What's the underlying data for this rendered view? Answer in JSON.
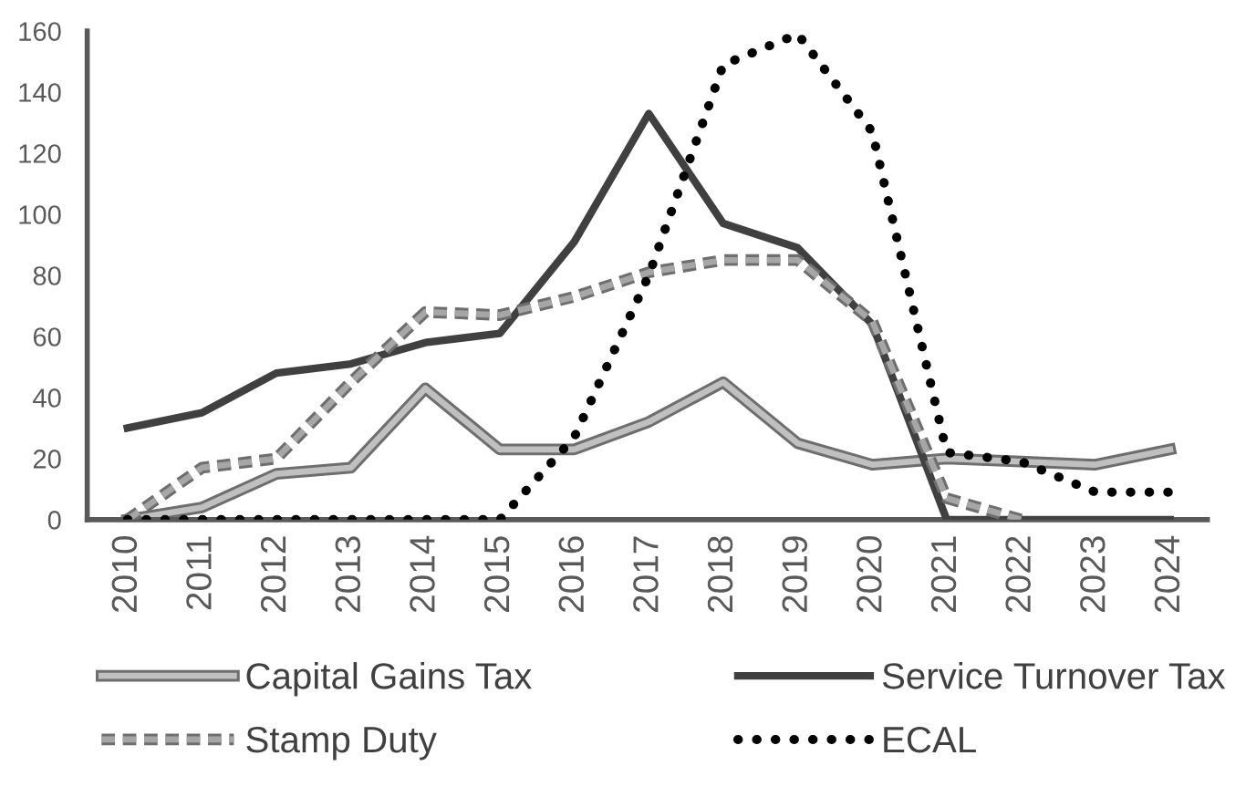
{
  "chart_data": {
    "type": "line",
    "categories": [
      "2010",
      "2011",
      "2012",
      "2013",
      "2014",
      "2015",
      "2016",
      "2017",
      "2018",
      "2019",
      "2020",
      "2021",
      "2022",
      "2023",
      "2024"
    ],
    "ylim": [
      0,
      160
    ],
    "yticks": [
      0,
      20,
      40,
      60,
      80,
      100,
      120,
      140,
      160
    ],
    "grid": false,
    "legend": "bottom",
    "marker": "none",
    "series": [
      {
        "name": "Capital Gains Tax",
        "color": "#c0c0c0",
        "line_style": "solid",
        "values": [
          0,
          4,
          15,
          17,
          43,
          23,
          23,
          32,
          45,
          25,
          18,
          20,
          19,
          18,
          23
        ]
      },
      {
        "name": "Service Turnover Tax",
        "color": "#404040",
        "line_style": "solid",
        "values": [
          30,
          35,
          48,
          51,
          58,
          61,
          91,
          133,
          97,
          89,
          64,
          0,
          0,
          0,
          0
        ]
      },
      {
        "name": "Stamp Duty",
        "color": "#a6a6a6",
        "line_style": "dashed",
        "values": [
          0,
          17,
          20,
          45,
          68,
          67,
          73,
          81,
          85,
          85,
          65,
          7,
          0,
          null,
          null
        ]
      },
      {
        "name": "ECAL",
        "color": "#000000",
        "line_style": "dotted",
        "values": [
          0,
          0,
          0,
          0,
          0,
          0,
          27,
          80,
          149,
          159,
          127,
          22,
          19,
          9,
          9
        ]
      }
    ]
  }
}
